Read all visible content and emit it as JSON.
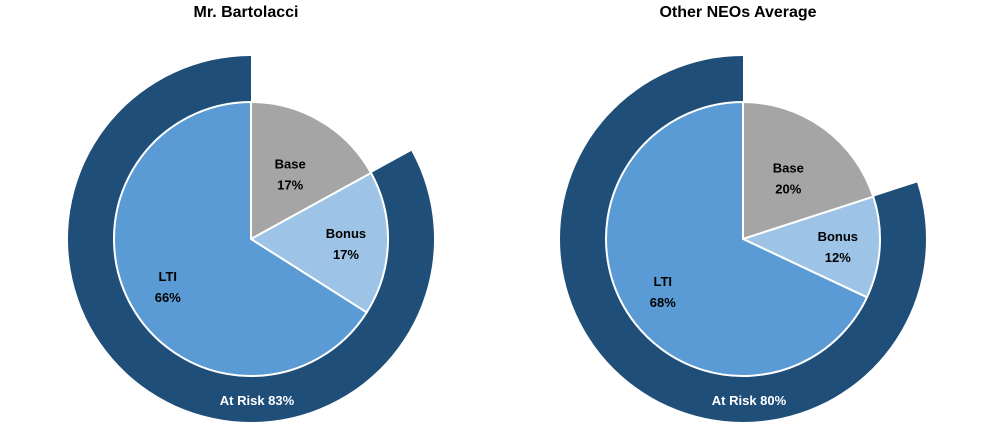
{
  "colors": {
    "base": "#a5a5a5",
    "bonus": "#9dc3e6",
    "lti": "#5b9bd5",
    "at_risk": "#1f4e79",
    "edge": "#ffffff",
    "label_dark": "#000000",
    "label_light": "#ffffff"
  },
  "chart_data": [
    {
      "type": "pie",
      "title": "Mr. Bartolacci",
      "slices": [
        {
          "name": "Base",
          "value": 17,
          "label": "17%"
        },
        {
          "name": "Bonus",
          "value": 17,
          "label": "17%"
        },
        {
          "name": "LTI",
          "value": 66,
          "label": "66%"
        }
      ],
      "outer_ring": {
        "name": "At Risk",
        "value": 83,
        "label": "At Risk 83%"
      }
    },
    {
      "type": "pie",
      "title": "Other NEOs Average",
      "slices": [
        {
          "name": "Base",
          "value": 20,
          "label": "20%"
        },
        {
          "name": "Bonus",
          "value": 12,
          "label": "12%"
        },
        {
          "name": "LTI",
          "value": 68,
          "label": "68%"
        }
      ],
      "outer_ring": {
        "name": "At Risk",
        "value": 80,
        "label": "At Risk 80%"
      }
    }
  ]
}
